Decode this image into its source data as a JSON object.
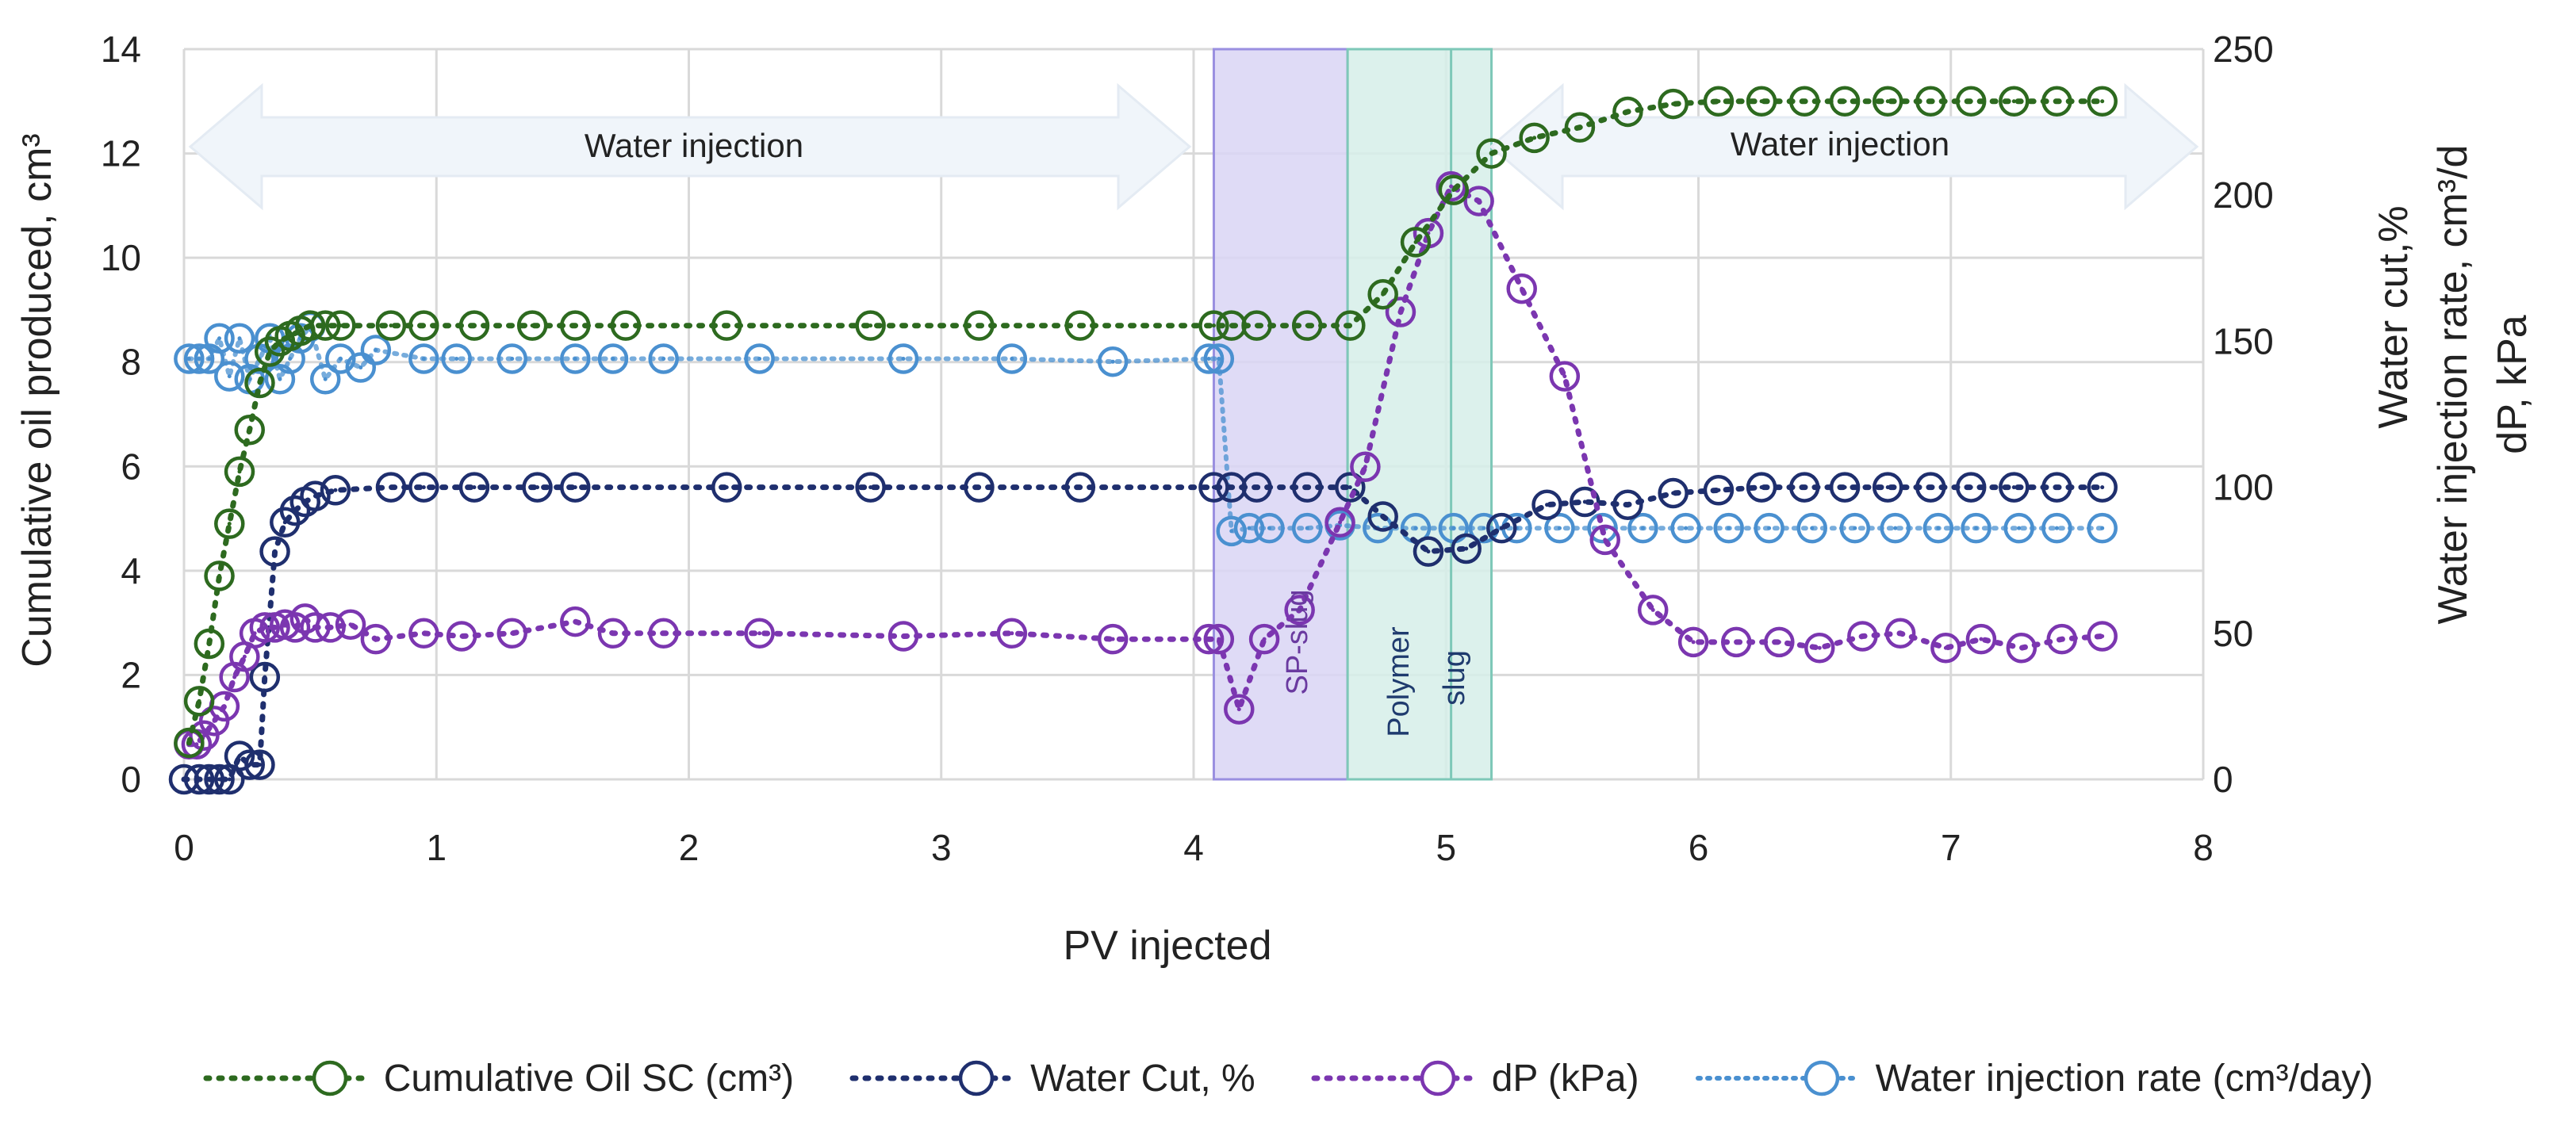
{
  "chart_data": {
    "type": "line",
    "xlabel": "PV injected",
    "ylabel_left": "Cumulative oil produced, cm³",
    "ylabel_right_1": "Water cut,%",
    "ylabel_right_2": "Water injection rate, cm³/d",
    "ylabel_right_3": "dP, kPa",
    "xlim": [
      0,
      8
    ],
    "ylim_left": [
      0,
      14
    ],
    "ylim_right": [
      0,
      250
    ],
    "x_ticks": [
      "0",
      "1",
      "2",
      "3",
      "4",
      "5",
      "6",
      "7",
      "8"
    ],
    "y_left_ticks": [
      "0",
      "2",
      "4",
      "6",
      "8",
      "10",
      "12",
      "14"
    ],
    "y_right_ticks": [
      "0",
      "50",
      "100",
      "150",
      "200",
      "250"
    ],
    "grid": true,
    "legend_position": "bottom",
    "annotations": {
      "water_injection_left": "Water injection",
      "water_injection_right": "Water injection",
      "sp_slug": "SP-slug",
      "polymer_slug_line1": "Polymer",
      "polymer_slug_line2": "slug"
    },
    "bands": [
      {
        "name": "SP-slug",
        "x_start": 4.08,
        "x_end": 4.61,
        "color": "#d9d5f5",
        "border": "#9a8fe0"
      },
      {
        "name": "Polymer slug",
        "x_start": 4.61,
        "x_end": 5.18,
        "color": "#d6eee9",
        "border": "#7ec8b8"
      }
    ],
    "series": [
      {
        "name": "Cumulative Oil SC (cm³)",
        "axis": "left",
        "color": "#2d6a1f",
        "x": [
          0.02,
          0.06,
          0.1,
          0.14,
          0.18,
          0.22,
          0.26,
          0.3,
          0.34,
          0.38,
          0.42,
          0.46,
          0.5,
          0.56,
          0.62,
          0.82,
          0.95,
          1.15,
          1.38,
          1.55,
          1.75,
          2.15,
          2.72,
          3.15,
          3.55,
          4.08,
          4.15,
          4.25,
          4.45,
          4.62,
          4.75,
          4.88,
          5.03,
          5.18,
          5.35,
          5.53,
          5.72,
          5.9,
          6.08,
          6.25,
          6.42,
          6.58,
          6.75,
          6.92,
          7.08,
          7.25,
          7.42,
          7.6
        ],
        "values": [
          0.7,
          1.5,
          2.6,
          3.9,
          4.9,
          5.9,
          6.7,
          7.6,
          8.2,
          8.4,
          8.5,
          8.6,
          8.7,
          8.7,
          8.7,
          8.7,
          8.7,
          8.7,
          8.7,
          8.7,
          8.7,
          8.7,
          8.7,
          8.7,
          8.7,
          8.7,
          8.7,
          8.7,
          8.7,
          8.7,
          9.3,
          10.3,
          11.3,
          12.0,
          12.3,
          12.5,
          12.8,
          12.95,
          13.0,
          13.0,
          13.0,
          13.0,
          13.0,
          13.0,
          13.0,
          13.0,
          13.0,
          13.0
        ]
      },
      {
        "name": "Water Cut, %",
        "axis": "right",
        "color": "#1f2f6e",
        "x": [
          0.0,
          0.06,
          0.1,
          0.14,
          0.18,
          0.22,
          0.26,
          0.3,
          0.32,
          0.36,
          0.4,
          0.44,
          0.48,
          0.52,
          0.6,
          0.82,
          0.95,
          1.15,
          1.4,
          1.55,
          2.15,
          2.72,
          3.15,
          3.55,
          4.08,
          4.15,
          4.25,
          4.45,
          4.62,
          4.75,
          4.93,
          5.08,
          5.22,
          5.4,
          5.55,
          5.72,
          5.9,
          6.08,
          6.25,
          6.42,
          6.58,
          6.75,
          6.92,
          7.08,
          7.25,
          7.42,
          7.6
        ],
        "values": [
          0,
          0,
          0,
          0,
          0,
          8,
          5,
          5,
          35,
          78,
          88,
          92,
          95,
          97,
          99,
          100,
          100,
          100,
          100,
          100,
          100,
          100,
          100,
          100,
          100,
          100,
          100,
          100,
          100,
          90,
          78,
          79,
          86,
          94,
          95,
          94,
          98,
          99,
          100,
          100,
          100,
          100,
          100,
          100,
          100,
          100,
          100
        ]
      },
      {
        "name": "dP (kPa)",
        "axis": "right",
        "color": "#7b36b0",
        "x": [
          0.02,
          0.05,
          0.08,
          0.12,
          0.16,
          0.2,
          0.24,
          0.28,
          0.32,
          0.36,
          0.4,
          0.44,
          0.48,
          0.52,
          0.58,
          0.66,
          0.76,
          0.95,
          1.1,
          1.3,
          1.55,
          1.7,
          1.9,
          2.28,
          2.85,
          3.28,
          3.68,
          4.06,
          4.1,
          4.18,
          4.28,
          4.42,
          4.58,
          4.68,
          4.82,
          4.93,
          5.02,
          5.13,
          5.3,
          5.47,
          5.63,
          5.82,
          5.98,
          6.15,
          6.32,
          6.48,
          6.65,
          6.8,
          6.98,
          7.12,
          7.28,
          7.44,
          7.6
        ],
        "values": [
          12,
          12,
          15,
          20,
          25,
          35,
          42,
          50,
          52,
          52,
          53,
          52,
          55,
          52,
          52,
          53,
          48,
          50,
          49,
          50,
          54,
          50,
          50,
          50,
          49,
          50,
          48,
          48,
          48,
          24,
          48,
          58,
          88,
          107,
          160,
          187,
          203,
          198,
          168,
          138,
          82,
          58,
          47,
          47,
          47,
          45,
          49,
          50,
          45,
          48,
          45,
          48,
          49
        ]
      },
      {
        "name": "Water injection rate (cm³/day)",
        "axis": "right",
        "color": "#4a90d0",
        "x": [
          0.02,
          0.06,
          0.1,
          0.14,
          0.18,
          0.22,
          0.26,
          0.3,
          0.34,
          0.38,
          0.42,
          0.46,
          0.5,
          0.56,
          0.62,
          0.7,
          0.76,
          0.95,
          1.08,
          1.3,
          1.55,
          1.7,
          1.9,
          2.28,
          2.85,
          3.28,
          3.68,
          4.06,
          4.1,
          4.15,
          4.22,
          4.3,
          4.45,
          4.58,
          4.73,
          4.88,
          5.03,
          5.15,
          5.28,
          5.45,
          5.62,
          5.78,
          5.95,
          6.12,
          6.28,
          6.45,
          6.62,
          6.78,
          6.95,
          7.1,
          7.27,
          7.42,
          7.6
        ],
        "values": [
          144,
          144,
          144,
          151,
          138,
          151,
          137,
          144,
          151,
          137,
          144,
          151,
          155,
          137,
          144,
          141,
          147,
          144,
          144,
          144,
          144,
          144,
          144,
          144,
          144,
          144,
          143,
          144,
          144,
          85,
          86,
          86,
          86,
          87,
          86,
          86,
          86,
          86,
          86,
          86,
          86,
          86,
          86,
          86,
          86,
          86,
          86,
          86,
          86,
          86,
          86,
          86,
          86
        ]
      }
    ]
  }
}
